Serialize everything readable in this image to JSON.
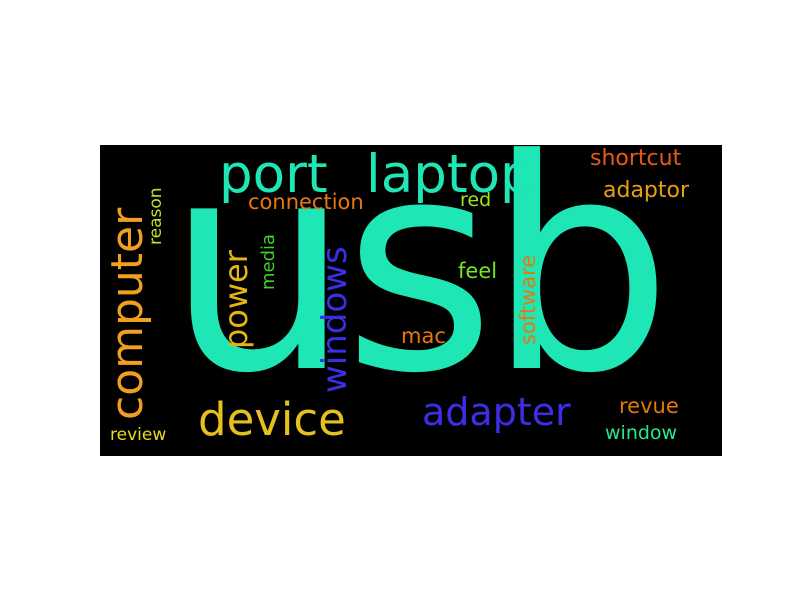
{
  "colors": {
    "background": "#000000",
    "page": "#ffffff"
  },
  "words": [
    {
      "id": "usb",
      "text": "usb",
      "color": "#1ee6b4"
    },
    {
      "id": "port",
      "text": "port",
      "color": "#1ee6b4"
    },
    {
      "id": "laptop",
      "text": "laptop",
      "color": "#1ee6b4"
    },
    {
      "id": "computer",
      "text": "computer",
      "color": "#f0a01e"
    },
    {
      "id": "device",
      "text": "device",
      "color": "#e6c01e"
    },
    {
      "id": "adapter",
      "text": "adapter",
      "color": "#3c2ee6"
    },
    {
      "id": "windows",
      "text": "windows",
      "color": "#3c2ee6"
    },
    {
      "id": "power",
      "text": "power",
      "color": "#e6b414"
    },
    {
      "id": "connection",
      "text": "connection",
      "color": "#e67814"
    },
    {
      "id": "shortcut",
      "text": "shortcut",
      "color": "#e65a14"
    },
    {
      "id": "adaptor",
      "text": "adaptor",
      "color": "#e6a014"
    },
    {
      "id": "red",
      "text": "red",
      "color": "#a0e614"
    },
    {
      "id": "software",
      "text": "software",
      "color": "#e67814"
    },
    {
      "id": "feel",
      "text": "feel",
      "color": "#78e614"
    },
    {
      "id": "mac",
      "text": "mac",
      "color": "#e6780a"
    },
    {
      "id": "media",
      "text": "media",
      "color": "#3cd228"
    },
    {
      "id": "reason",
      "text": "reason",
      "color": "#c8dc28"
    },
    {
      "id": "revue",
      "text": "revue",
      "color": "#e6780a"
    },
    {
      "id": "window",
      "text": "window",
      "color": "#28e68c"
    },
    {
      "id": "review",
      "text": "review",
      "color": "#e6dc1e"
    }
  ]
}
